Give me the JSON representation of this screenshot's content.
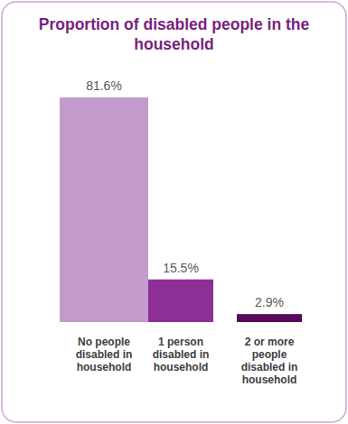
{
  "chart_data": {
    "type": "bar",
    "title": "Proportion of disabled people in the household",
    "categories": [
      "No people disabled in household",
      "1 person disabled in household",
      "2 or more people disabled in household"
    ],
    "values": [
      81.6,
      15.5,
      2.9
    ],
    "value_labels": [
      "81.6%",
      "15.5%",
      "2.9%"
    ],
    "colors": [
      "#c39bcb",
      "#8d2f95",
      "#5a0a5c"
    ],
    "data_labels": true,
    "tick_labels": false
  }
}
